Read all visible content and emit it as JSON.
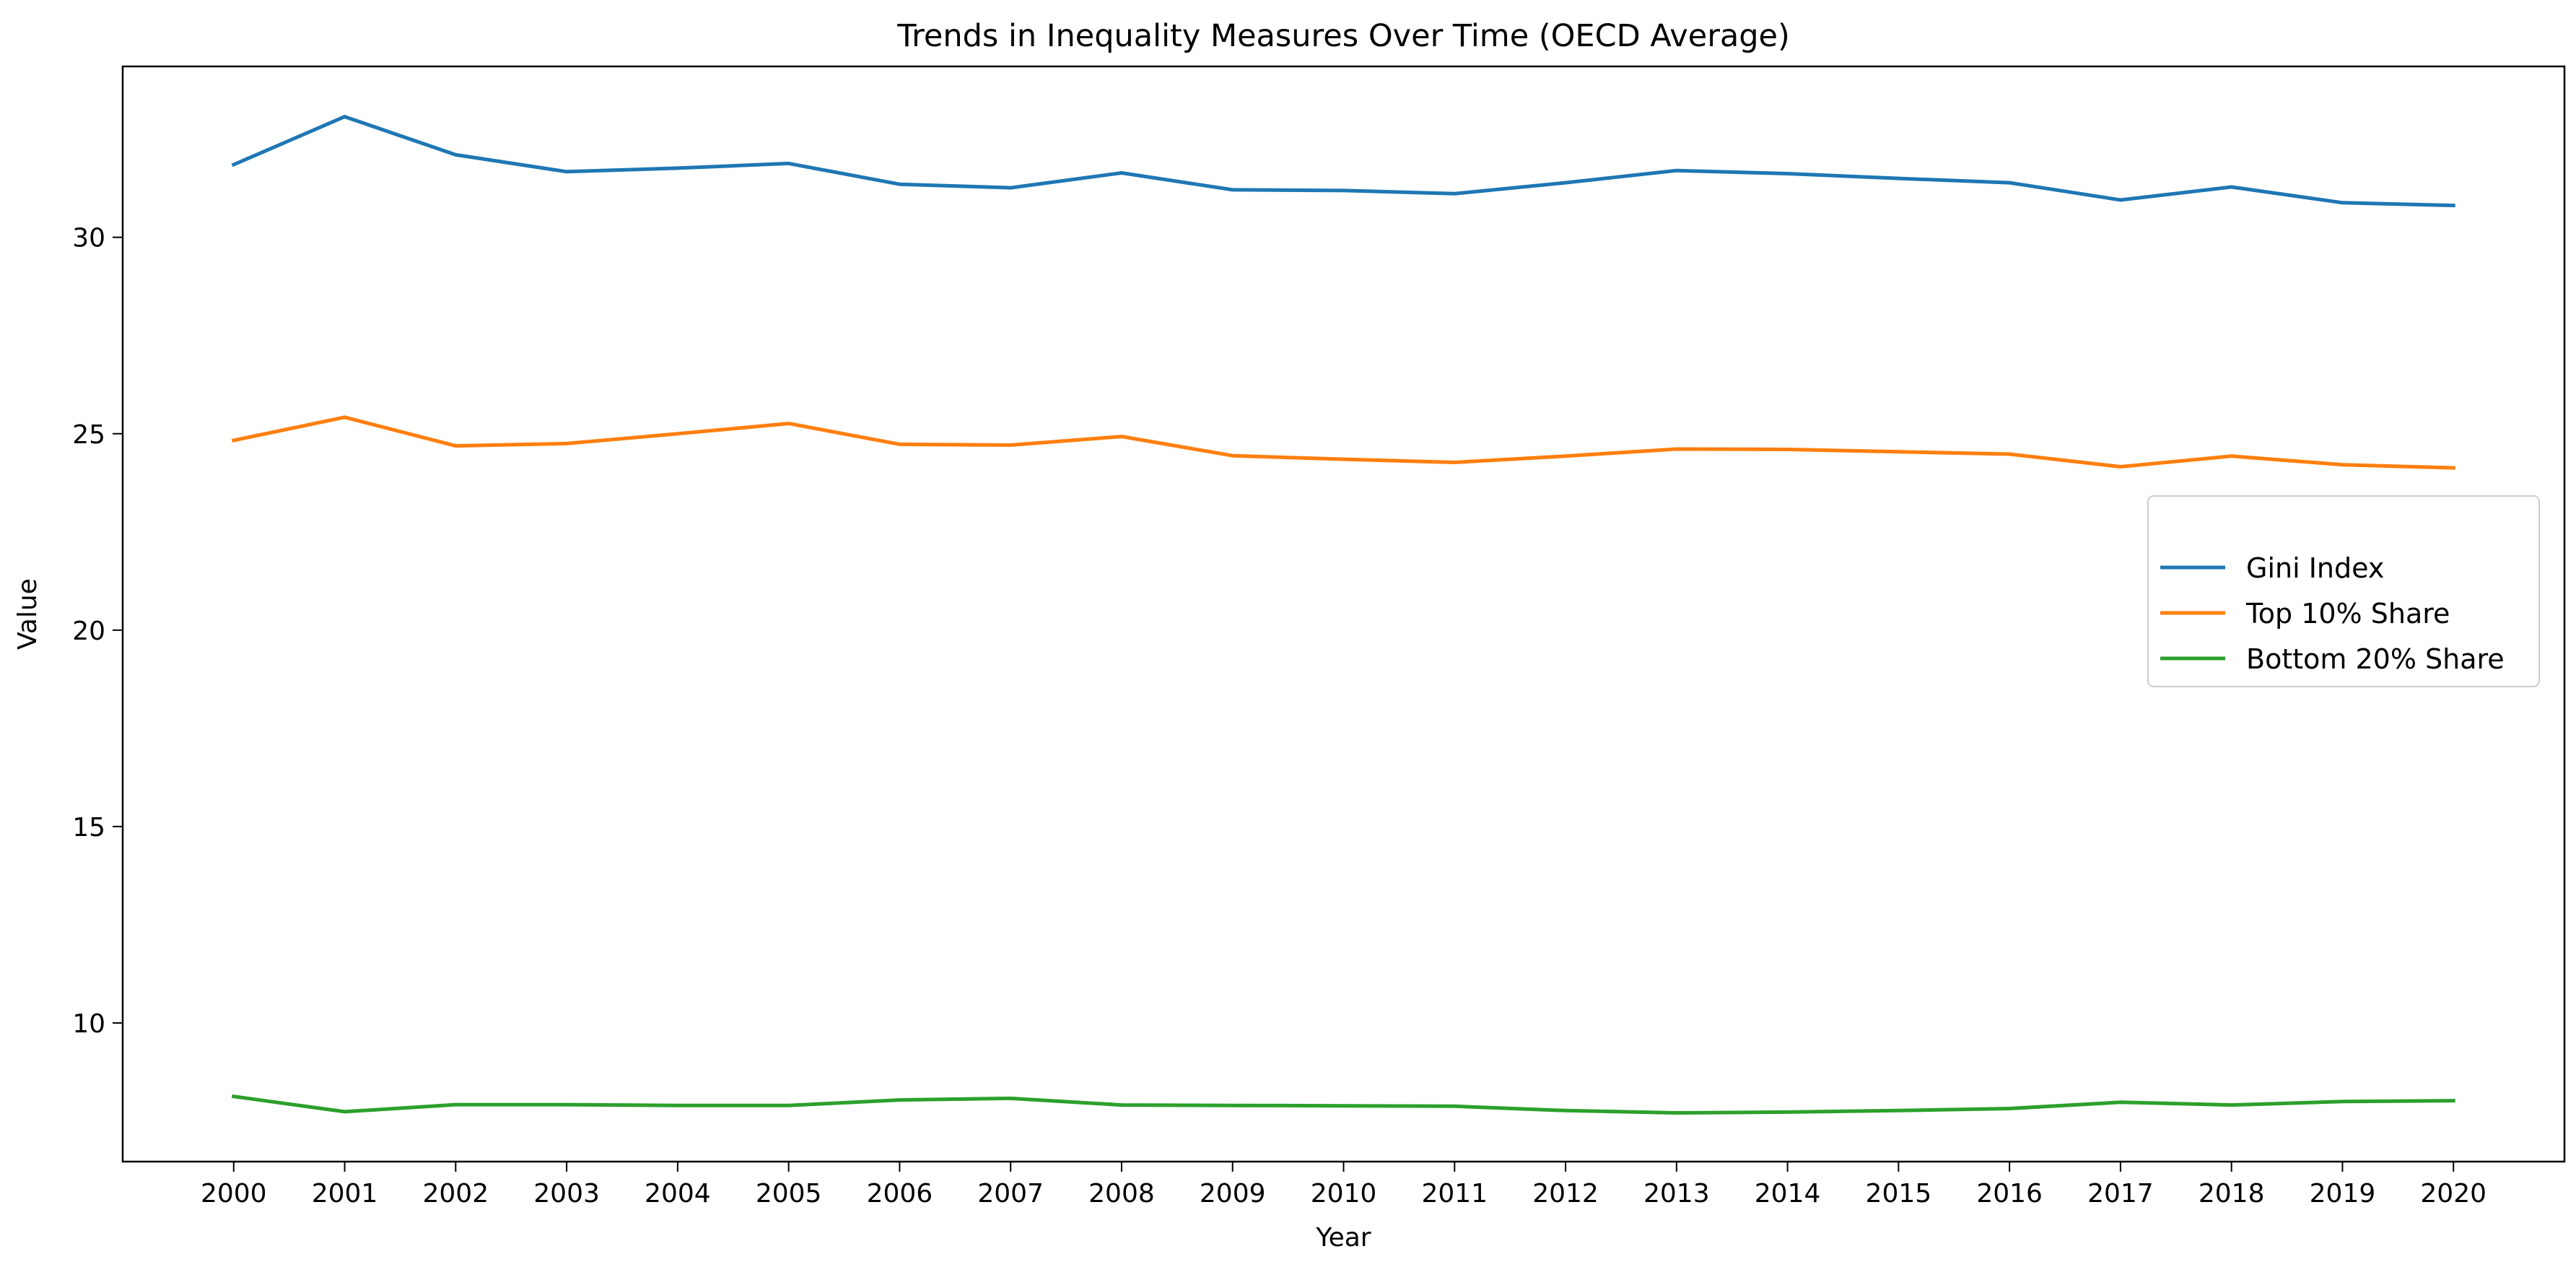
{
  "chart_data": {
    "type": "line",
    "title": "Trends in Inequality Measures Over Time (OECD Average)",
    "xlabel": "Year",
    "ylabel": "Value",
    "x": [
      2000,
      2001,
      2002,
      2003,
      2004,
      2005,
      2006,
      2007,
      2008,
      2009,
      2010,
      2011,
      2012,
      2013,
      2014,
      2015,
      2016,
      2017,
      2018,
      2019,
      2020
    ],
    "xtick_labels": [
      "2000",
      "2001",
      "2002",
      "2003",
      "2004",
      "2005",
      "2006",
      "2007",
      "2008",
      "2009",
      "2010",
      "2011",
      "2012",
      "2013",
      "2014",
      "2015",
      "2016",
      "2017",
      "2018",
      "2019",
      "2020"
    ],
    "yticks": [
      10,
      15,
      20,
      25,
      30
    ],
    "ylim": [
      6.47,
      34.35
    ],
    "xlim": [
      1999.0,
      2021.0
    ],
    "grid": false,
    "legend_position": "center-right",
    "series": [
      {
        "name": "Gini Index",
        "color": "#1f77b4",
        "values": [
          31.85,
          33.07,
          32.1,
          31.67,
          31.76,
          31.88,
          31.35,
          31.26,
          31.64,
          31.21,
          31.19,
          31.11,
          31.39,
          31.7,
          31.62,
          31.5,
          31.39,
          30.95,
          31.28,
          30.88,
          30.81
        ]
      },
      {
        "name": "Top 10% Share",
        "color": "#ff7f0e",
        "values": [
          24.83,
          25.42,
          24.69,
          24.75,
          25.0,
          25.26,
          24.73,
          24.71,
          24.93,
          24.44,
          24.35,
          24.27,
          24.43,
          24.61,
          24.6,
          24.54,
          24.48,
          24.16,
          24.43,
          24.21,
          24.13
        ]
      },
      {
        "name": "Bottom 20% Share",
        "color": "#2ca02c",
        "values": [
          8.13,
          7.74,
          7.92,
          7.92,
          7.9,
          7.9,
          8.04,
          8.08,
          7.91,
          7.9,
          7.89,
          7.88,
          7.77,
          7.71,
          7.73,
          7.77,
          7.82,
          7.98,
          7.91,
          8.0,
          8.02
        ]
      }
    ]
  }
}
